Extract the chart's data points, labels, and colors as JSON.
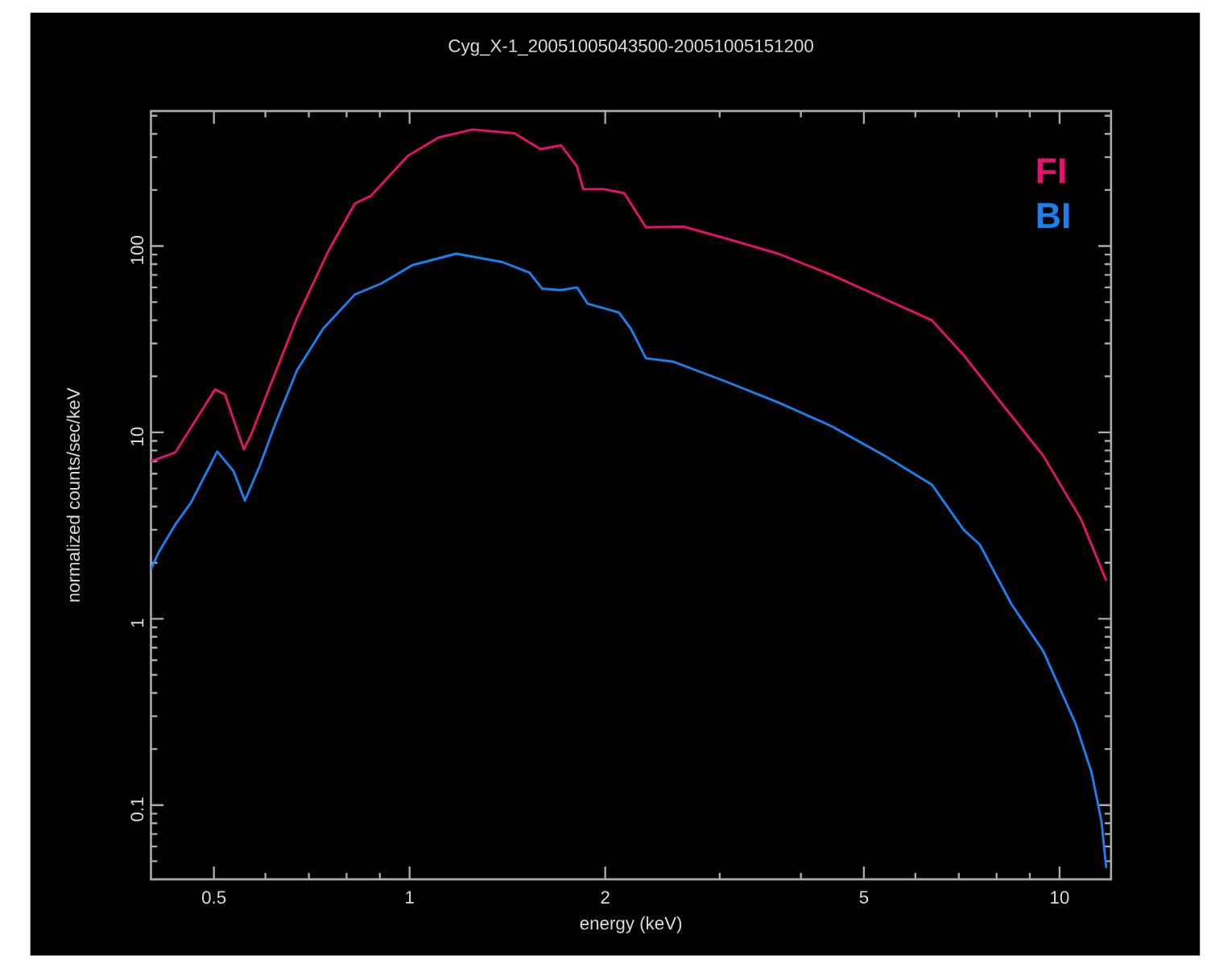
{
  "chart_data": {
    "type": "line",
    "title": "Cyg_X-1_20051005043500-20051005151200",
    "xlabel": "energy (keV)",
    "ylabel": "normalized counts/sec/keV",
    "log": "xy",
    "legend": "top right",
    "xlim": [
      0.4,
      12
    ],
    "ylim": [
      0.04,
      530
    ],
    "xticks": [
      {
        "value": 0.5,
        "label": "0.5"
      },
      {
        "value": 0.6,
        "label": null
      },
      {
        "value": 0.7,
        "label": null
      },
      {
        "value": 0.8,
        "label": null
      },
      {
        "value": 0.9,
        "label": null
      },
      1,
      2,
      {
        "value": 3,
        "label": null
      },
      {
        "value": 4,
        "label": null
      },
      5,
      {
        "value": 6,
        "label": null
      },
      {
        "value": 7,
        "label": null
      },
      {
        "value": 8,
        "label": null
      },
      {
        "value": 9,
        "label": null
      },
      10
    ],
    "yticks": [
      {
        "value": 0.05,
        "label": null
      },
      {
        "value": 0.06,
        "label": null
      },
      {
        "value": 0.07,
        "label": null
      },
      {
        "value": 0.08,
        "label": null
      },
      {
        "value": 0.09,
        "label": null
      },
      0.1,
      {
        "value": 0.2,
        "label": null
      },
      {
        "value": 0.3,
        "label": null
      },
      {
        "value": 0.4,
        "label": null
      },
      {
        "value": 0.5,
        "label": null
      },
      {
        "value": 0.6,
        "label": null
      },
      {
        "value": 0.7,
        "label": null
      },
      {
        "value": 0.8,
        "label": null
      },
      {
        "value": 0.9,
        "label": null
      },
      1,
      {
        "value": 2,
        "label": null
      },
      {
        "value": 3,
        "label": null
      },
      {
        "value": 4,
        "label": null
      },
      {
        "value": 5,
        "label": null
      },
      {
        "value": 6,
        "label": null
      },
      {
        "value": 7,
        "label": null
      },
      {
        "value": 8,
        "label": null
      },
      {
        "value": 9,
        "label": null
      },
      10,
      {
        "value": 20,
        "label": null
      },
      {
        "value": 30,
        "label": null
      },
      {
        "value": 40,
        "label": null
      },
      {
        "value": 50,
        "label": null
      },
      {
        "value": 60,
        "label": null
      },
      {
        "value": 70,
        "label": null
      },
      {
        "value": 80,
        "label": null
      },
      {
        "value": 90,
        "label": null
      },
      100,
      {
        "value": 200,
        "label": null
      },
      {
        "value": 300,
        "label": null
      },
      {
        "value": 400,
        "label": null
      },
      {
        "value": 500,
        "label": null
      }
    ],
    "series": [
      {
        "name": "FI",
        "color": "#e8106e",
        "x": [
          0.4,
          0.436,
          0.502,
          0.52,
          0.556,
          0.571,
          0.61,
          0.671,
          0.75,
          0.824,
          0.872,
          0.994,
          1.11,
          1.25,
          1.45,
          1.59,
          1.71,
          1.81,
          1.85,
          1.99,
          2.14,
          2.31,
          2.64,
          3.06,
          3.69,
          4.46,
          5.38,
          6.36,
          7.12,
          8.12,
          9.44,
          10.8,
          11.8
        ],
        "values": [
          7.0,
          7.8,
          17,
          16,
          8.1,
          9.8,
          17.7,
          41,
          94,
          169,
          186,
          305,
          383,
          422,
          403,
          331,
          347,
          267,
          202,
          202,
          192,
          126,
          127,
          110,
          91,
          70,
          52,
          40,
          26,
          14.5,
          7.5,
          3.4,
          1.6
        ]
      },
      {
        "name": "BI",
        "color": "#1a80f0",
        "x": [
          0.4,
          0.412,
          0.436,
          0.461,
          0.506,
          0.536,
          0.558,
          0.588,
          0.622,
          0.671,
          0.736,
          0.824,
          0.905,
          1.01,
          1.18,
          1.39,
          1.53,
          1.6,
          1.71,
          1.81,
          1.88,
          2.1,
          2.19,
          2.31,
          2.54,
          3.06,
          3.69,
          4.46,
          5.38,
          6.36,
          7.12,
          7.54,
          8.43,
          9.44,
          10.6,
          11.2,
          11.6,
          11.8
        ],
        "values": [
          1.85,
          2.3,
          3.2,
          4.2,
          7.9,
          6.2,
          4.3,
          6.6,
          11.2,
          21.5,
          36,
          55,
          63,
          79,
          91,
          82,
          72,
          59,
          58,
          60,
          49,
          44,
          36,
          25,
          24,
          18.8,
          14.5,
          10.8,
          7.5,
          5.25,
          3.0,
          2.5,
          1.2,
          0.67,
          0.27,
          0.15,
          0.082,
          0.046
        ]
      }
    ]
  }
}
